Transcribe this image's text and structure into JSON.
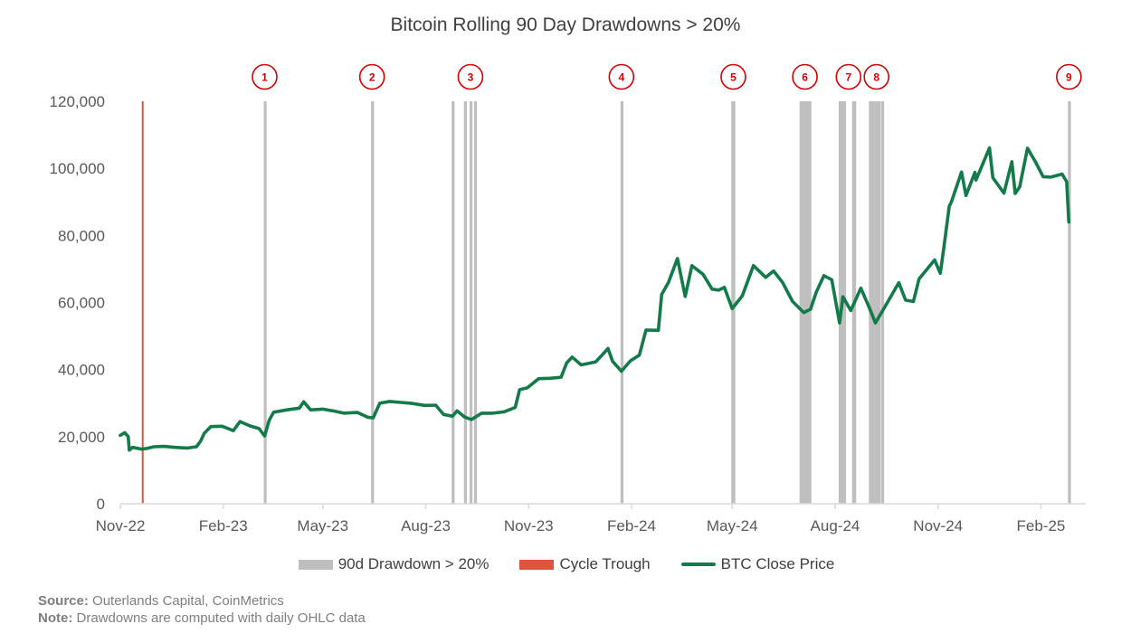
{
  "colors": {
    "drawdown": "#bfbfbf",
    "trough": "#e0543c",
    "price": "#137a4a",
    "marker": "#d40000",
    "axis": "#d9d9d9"
  },
  "chart_data": {
    "type": "line",
    "title": "Bitcoin Rolling 90 Day Drawdowns > 20%",
    "xlabel": "",
    "ylabel": "",
    "ylim": [
      0,
      120000
    ],
    "xlim": [
      "2022-11-01",
      "2025-03-05"
    ],
    "y_ticks": [
      0,
      20000,
      40000,
      60000,
      80000,
      100000,
      120000
    ],
    "y_tick_labels": [
      "0",
      "20,000",
      "40,000",
      "60,000",
      "80,000",
      "100,000",
      "120,000"
    ],
    "x_ticks": [
      "2022-11-01",
      "2023-02-01",
      "2023-05-01",
      "2023-08-01",
      "2023-11-01",
      "2024-02-01",
      "2024-05-01",
      "2024-08-01",
      "2024-11-01",
      "2025-02-01"
    ],
    "x_tick_labels": [
      "Nov-22",
      "Feb-23",
      "May-23",
      "Aug-23",
      "Nov-23",
      "Feb-24",
      "May-24",
      "Aug-24",
      "Nov-24",
      "Feb-25"
    ],
    "grid": false,
    "legend_position": "bottom",
    "series": [
      {
        "name": "BTC Close Price",
        "points": [
          [
            "2022-11-01",
            20400
          ],
          [
            "2022-11-05",
            21200
          ],
          [
            "2022-11-08",
            20000
          ],
          [
            "2022-11-09",
            16000
          ],
          [
            "2022-11-12",
            16800
          ],
          [
            "2022-11-20",
            16300
          ],
          [
            "2022-11-25",
            16500
          ],
          [
            "2022-12-01",
            17000
          ],
          [
            "2022-12-10",
            17100
          ],
          [
            "2022-12-20",
            16800
          ],
          [
            "2022-12-31",
            16600
          ],
          [
            "2023-01-08",
            17000
          ],
          [
            "2023-01-12",
            18800
          ],
          [
            "2023-01-15",
            21000
          ],
          [
            "2023-01-21",
            23000
          ],
          [
            "2023-01-31",
            23100
          ],
          [
            "2023-02-10",
            21800
          ],
          [
            "2023-02-16",
            24500
          ],
          [
            "2023-02-25",
            23200
          ],
          [
            "2023-03-05",
            22400
          ],
          [
            "2023-03-10",
            20200
          ],
          [
            "2023-03-14",
            24800
          ],
          [
            "2023-03-18",
            27300
          ],
          [
            "2023-03-30",
            28000
          ],
          [
            "2023-04-10",
            28500
          ],
          [
            "2023-04-14",
            30400
          ],
          [
            "2023-04-20",
            28000
          ],
          [
            "2023-05-01",
            28200
          ],
          [
            "2023-05-10",
            27700
          ],
          [
            "2023-05-20",
            27000
          ],
          [
            "2023-06-01",
            27200
          ],
          [
            "2023-06-10",
            25800
          ],
          [
            "2023-06-15",
            25600
          ],
          [
            "2023-06-21",
            30000
          ],
          [
            "2023-06-30",
            30500
          ],
          [
            "2023-07-10",
            30200
          ],
          [
            "2023-07-20",
            29900
          ],
          [
            "2023-07-31",
            29300
          ],
          [
            "2023-08-10",
            29400
          ],
          [
            "2023-08-17",
            26600
          ],
          [
            "2023-08-25",
            26100
          ],
          [
            "2023-08-29",
            27700
          ],
          [
            "2023-09-05",
            25800
          ],
          [
            "2023-09-11",
            25100
          ],
          [
            "2023-09-20",
            27000
          ],
          [
            "2023-09-30",
            27000
          ],
          [
            "2023-10-10",
            27400
          ],
          [
            "2023-10-20",
            28700
          ],
          [
            "2023-10-24",
            34000
          ],
          [
            "2023-10-31",
            34600
          ],
          [
            "2023-11-10",
            37300
          ],
          [
            "2023-11-20",
            37400
          ],
          [
            "2023-11-30",
            37700
          ],
          [
            "2023-12-05",
            42000
          ],
          [
            "2023-12-10",
            43700
          ],
          [
            "2023-12-18",
            41400
          ],
          [
            "2023-12-31",
            42300
          ],
          [
            "2024-01-05",
            44100
          ],
          [
            "2024-01-11",
            46300
          ],
          [
            "2024-01-15",
            42500
          ],
          [
            "2024-01-23",
            39500
          ],
          [
            "2024-01-31",
            42600
          ],
          [
            "2024-02-08",
            44300
          ],
          [
            "2024-02-14",
            51800
          ],
          [
            "2024-02-25",
            51700
          ],
          [
            "2024-02-28",
            62400
          ],
          [
            "2024-03-05",
            66000
          ],
          [
            "2024-03-13",
            73100
          ],
          [
            "2024-03-20",
            61800
          ],
          [
            "2024-03-26",
            71000
          ],
          [
            "2024-04-05",
            68400
          ],
          [
            "2024-04-13",
            64000
          ],
          [
            "2024-04-19",
            63700
          ],
          [
            "2024-04-24",
            64500
          ],
          [
            "2024-05-01",
            58200
          ],
          [
            "2024-05-10",
            62000
          ],
          [
            "2024-05-20",
            71000
          ],
          [
            "2024-05-31",
            67500
          ],
          [
            "2024-06-07",
            69400
          ],
          [
            "2024-06-15",
            66000
          ],
          [
            "2024-06-24",
            60300
          ],
          [
            "2024-07-04",
            57000
          ],
          [
            "2024-07-10",
            58000
          ],
          [
            "2024-07-15",
            63000
          ],
          [
            "2024-07-22",
            68000
          ],
          [
            "2024-07-29",
            66800
          ],
          [
            "2024-08-05",
            53900
          ],
          [
            "2024-08-08",
            61700
          ],
          [
            "2024-08-15",
            57600
          ],
          [
            "2024-08-24",
            64300
          ],
          [
            "2024-08-31",
            58900
          ],
          [
            "2024-09-06",
            53900
          ],
          [
            "2024-09-15",
            59000
          ],
          [
            "2024-09-27",
            65900
          ],
          [
            "2024-10-03",
            60700
          ],
          [
            "2024-10-10",
            60300
          ],
          [
            "2024-10-15",
            67000
          ],
          [
            "2024-10-29",
            72700
          ],
          [
            "2024-11-03",
            68700
          ],
          [
            "2024-11-06",
            75800
          ],
          [
            "2024-11-11",
            88700
          ],
          [
            "2024-11-13",
            90000
          ],
          [
            "2024-11-22",
            98900
          ],
          [
            "2024-11-26",
            91900
          ],
          [
            "2024-12-04",
            98800
          ],
          [
            "2024-12-05",
            96500
          ],
          [
            "2024-12-17",
            106100
          ],
          [
            "2024-12-20",
            97200
          ],
          [
            "2024-12-30",
            92600
          ],
          [
            "2025-01-06",
            102000
          ],
          [
            "2025-01-09",
            92500
          ],
          [
            "2025-01-13",
            94500
          ],
          [
            "2025-01-20",
            106000
          ],
          [
            "2025-01-27",
            102000
          ],
          [
            "2025-02-03",
            97500
          ],
          [
            "2025-02-10",
            97400
          ],
          [
            "2025-02-20",
            98300
          ],
          [
            "2025-02-24",
            96000
          ],
          [
            "2025-02-26",
            84000
          ]
        ]
      }
    ],
    "cycle_trough": {
      "name": "Cycle Trough",
      "date": "2022-11-21"
    },
    "drawdown_periods": {
      "name": "90d Drawdown > 20%",
      "bands": [
        [
          "2023-03-10",
          "2023-03-11"
        ],
        [
          "2023-06-14",
          "2023-06-15"
        ],
        [
          "2023-08-25",
          "2023-08-26"
        ],
        [
          "2023-09-05",
          "2023-09-06"
        ],
        [
          "2023-09-10",
          "2023-09-11"
        ],
        [
          "2023-09-14",
          "2023-09-15"
        ],
        [
          "2024-01-23",
          "2024-01-24"
        ],
        [
          "2024-05-01",
          "2024-05-03"
        ],
        [
          "2024-07-01",
          "2024-07-10"
        ],
        [
          "2024-08-05",
          "2024-08-10"
        ],
        [
          "2024-08-17",
          "2024-08-19"
        ],
        [
          "2024-09-01",
          "2024-09-10"
        ],
        [
          "2024-09-12",
          "2024-09-13"
        ],
        [
          "2025-02-26",
          "2025-02-27"
        ]
      ]
    },
    "markers": [
      {
        "label": "1",
        "date": "2023-03-10"
      },
      {
        "label": "2",
        "date": "2023-06-14"
      },
      {
        "label": "3",
        "date": "2023-09-10"
      },
      {
        "label": "4",
        "date": "2024-01-23"
      },
      {
        "label": "5",
        "date": "2024-05-02"
      },
      {
        "label": "6",
        "date": "2024-07-05"
      },
      {
        "label": "7",
        "date": "2024-08-13"
      },
      {
        "label": "8",
        "date": "2024-09-07"
      },
      {
        "label": "9",
        "date": "2025-02-26"
      }
    ]
  },
  "legend": {
    "drawdown_label": "90d Drawdown > 20%",
    "trough_label": "Cycle Trough",
    "price_label": "BTC Close Price"
  },
  "footnotes": {
    "source_label": "Source:",
    "source_text": "Outerlands Capital, CoinMetrics",
    "note_label": "Note:",
    "note_text": "Drawdowns are computed with daily OHLC data"
  }
}
